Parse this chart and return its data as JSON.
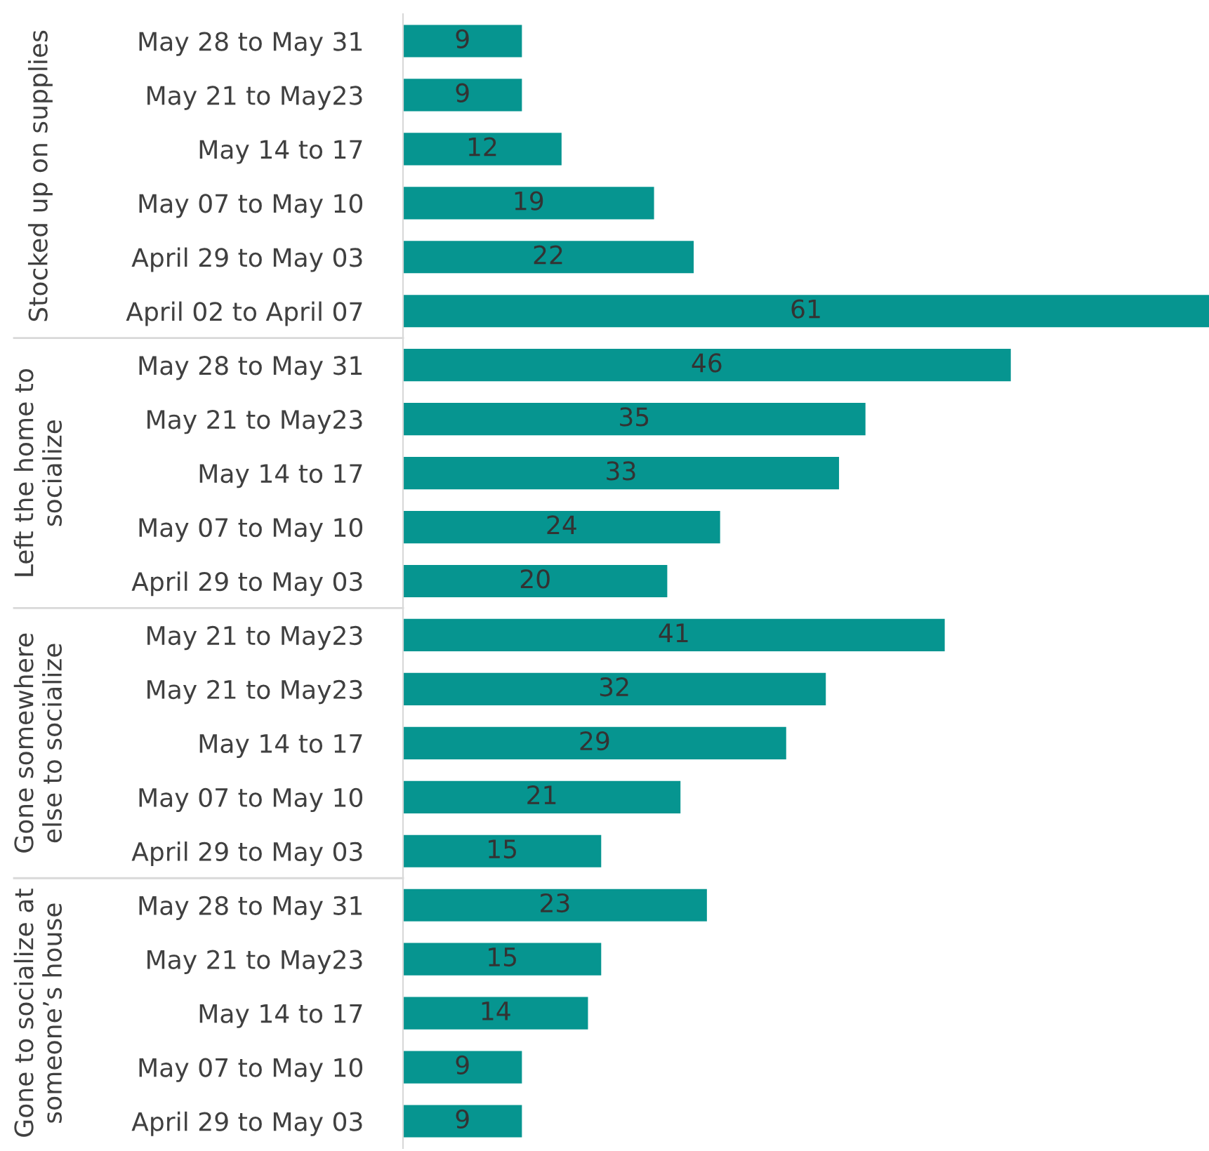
{
  "chart_data": [
    {
      "type": "bar",
      "orientation": "horizontal",
      "ylabel": "Stocked up on supplies",
      "categories": [
        "May 28 to May 31",
        "May 21 to May23",
        "May 14 to 17",
        "May 07 to May 10",
        "April 29 to May 03",
        "April 02 to April 07"
      ],
      "values": [
        9,
        9,
        12,
        19,
        22,
        61
      ],
      "color": "#069590",
      "data_labels": true,
      "tick_labels": "y"
    },
    {
      "type": "bar",
      "orientation": "horizontal",
      "ylabel": "Left the home to\nsocialize",
      "categories": [
        "May 28 to May 31",
        "May 21 to May23",
        "May 14 to 17",
        "May 07 to May 10",
        "April 29 to May 03"
      ],
      "values": [
        46,
        35,
        33,
        24,
        20
      ],
      "color": "#069590",
      "data_labels": true,
      "tick_labels": "y"
    },
    {
      "type": "bar",
      "orientation": "horizontal",
      "ylabel": "Gone somewhere\nelse to socialize",
      "categories": [
        "May 21 to May23",
        "May 21 to May23",
        "May 14 to 17",
        "May 07 to May 10",
        "April 29 to May 03"
      ],
      "values": [
        41,
        32,
        29,
        21,
        15
      ],
      "color": "#069590",
      "data_labels": true,
      "tick_labels": "y"
    },
    {
      "type": "bar",
      "orientation": "horizontal",
      "ylabel": "Gone to socialize at\nsomeone’s house",
      "categories": [
        "May 28 to May 31",
        "May 21 to May23",
        "May 14 to 17",
        "May 07 to May 10",
        "April 29 to May 03"
      ],
      "values": [
        23,
        15,
        14,
        9,
        9
      ],
      "color": "#069590",
      "data_labels": true,
      "tick_labels": "y"
    }
  ]
}
